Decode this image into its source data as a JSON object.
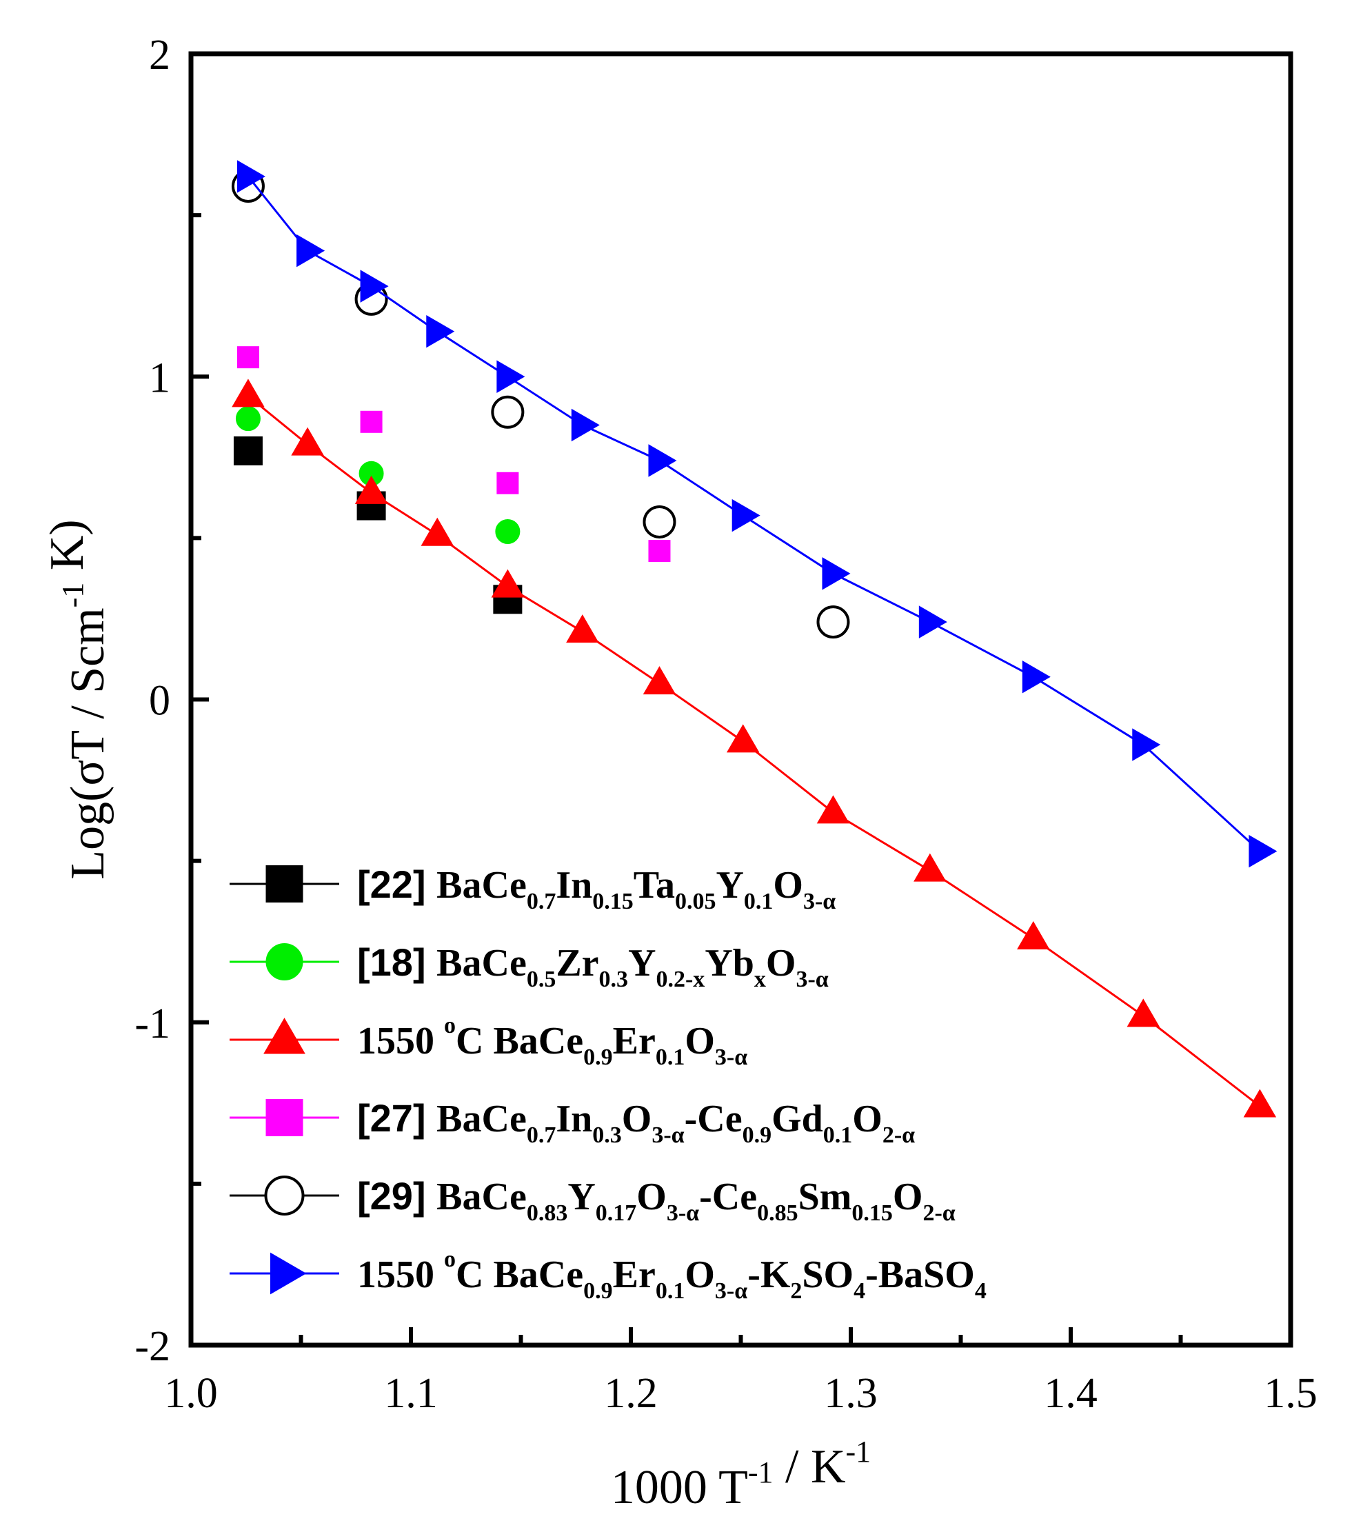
{
  "chart_data": {
    "type": "scatter",
    "title": "",
    "xlabel": "1000 T^-1 / K^-1",
    "ylabel": "Log(σT / Scm^-1 K)",
    "xlim": [
      1.0,
      1.5
    ],
    "ylim": [
      -2,
      2
    ],
    "x_ticks": [
      "1.0",
      "1.1",
      "1.2",
      "1.3",
      "1.4",
      "1.5"
    ],
    "y_ticks": [
      "-2",
      "-1",
      "0",
      "1",
      "2"
    ],
    "x_tick_values": [
      1.0,
      1.1,
      1.2,
      1.3,
      1.4,
      1.5
    ],
    "y_tick_values": [
      -2,
      -1,
      0,
      1,
      2
    ],
    "x_minor_tick_values": [
      1.05,
      1.15,
      1.25,
      1.35,
      1.45
    ],
    "y_minor_tick_values": [
      -1.5,
      -0.5,
      0.5,
      1.5
    ],
    "legend_position": "bottom-left",
    "series": [
      {
        "name": "[22] BaCe0.7In0.15Ta0.05Y0.1O3-α",
        "legend_parts": [
          {
            "t": "[22] ",
            "s": "ref"
          },
          {
            "t": "BaCe",
            "s": "n"
          },
          {
            "t": "0.7",
            "s": "sub"
          },
          {
            "t": "In",
            "s": "n"
          },
          {
            "t": "0.15",
            "s": "sub"
          },
          {
            "t": "Ta",
            "s": "n"
          },
          {
            "t": "0.05",
            "s": "sub"
          },
          {
            "t": "Y",
            "s": "n"
          },
          {
            "t": "0.1",
            "s": "sub"
          },
          {
            "t": "O",
            "s": "n"
          },
          {
            "t": "3-α",
            "s": "sub"
          }
        ],
        "marker": "square",
        "filled": true,
        "color": "#000000",
        "line": false,
        "x": [
          1.026,
          1.082,
          1.144
        ],
        "y": [
          0.77,
          0.6,
          0.31
        ]
      },
      {
        "name": "[18] BaCe0.5Zr0.3Y0.2-xYbxO3-α",
        "legend_parts": [
          {
            "t": "[18] ",
            "s": "ref"
          },
          {
            "t": "BaCe",
            "s": "n"
          },
          {
            "t": "0.5",
            "s": "sub"
          },
          {
            "t": "Zr",
            "s": "n"
          },
          {
            "t": "0.3",
            "s": "sub"
          },
          {
            "t": "Y",
            "s": "n"
          },
          {
            "t": "0.2-x",
            "s": "sub"
          },
          {
            "t": "Yb",
            "s": "n"
          },
          {
            "t": "x",
            "s": "sub"
          },
          {
            "t": "O",
            "s": "n"
          },
          {
            "t": "3-α",
            "s": "sub"
          }
        ],
        "marker": "circle",
        "filled": true,
        "color": "#00ee00",
        "line": false,
        "x": [
          1.026,
          1.082,
          1.144
        ],
        "y": [
          0.87,
          0.7,
          0.52
        ]
      },
      {
        "name": "1550 oC BaCe0.9Er0.1O3-α",
        "legend_parts": [
          {
            "t": "1550 ",
            "s": "n"
          },
          {
            "t": "o",
            "s": "sup"
          },
          {
            "t": "C BaCe",
            "s": "n"
          },
          {
            "t": "0.9",
            "s": "sub"
          },
          {
            "t": "Er",
            "s": "n"
          },
          {
            "t": "0.1",
            "s": "sub"
          },
          {
            "t": "O",
            "s": "n"
          },
          {
            "t": "3-α",
            "s": "sub"
          }
        ],
        "marker": "triangle-up",
        "filled": true,
        "color": "#ff0000",
        "line": true,
        "x": [
          1.026,
          1.053,
          1.082,
          1.112,
          1.144,
          1.178,
          1.213,
          1.251,
          1.292,
          1.336,
          1.383,
          1.433,
          1.486
        ],
        "y": [
          0.94,
          0.79,
          0.64,
          0.51,
          0.35,
          0.21,
          0.05,
          -0.13,
          -0.35,
          -0.53,
          -0.74,
          -0.98,
          -1.26
        ]
      },
      {
        "name": "[27] BaCe0.7In0.3O3-α-Ce0.9Gd0.1O2-α",
        "legend_parts": [
          {
            "t": "[27] ",
            "s": "ref"
          },
          {
            "t": "BaCe",
            "s": "n"
          },
          {
            "t": "0.7",
            "s": "sub"
          },
          {
            "t": "In",
            "s": "n"
          },
          {
            "t": "0.3",
            "s": "sub"
          },
          {
            "t": "O",
            "s": "n"
          },
          {
            "t": "3-α",
            "s": "sub"
          },
          {
            "t": "-Ce",
            "s": "n"
          },
          {
            "t": "0.9",
            "s": "sub"
          },
          {
            "t": "Gd",
            "s": "n"
          },
          {
            "t": "0.1",
            "s": "sub"
          },
          {
            "t": "O",
            "s": "n"
          },
          {
            "t": "2-α",
            "s": "sub"
          }
        ],
        "marker": "square",
        "filled": true,
        "color": "#ff00ff",
        "line": false,
        "small": true,
        "x": [
          1.026,
          1.082,
          1.144,
          1.213
        ],
        "y": [
          1.06,
          0.86,
          0.67,
          0.46
        ]
      },
      {
        "name": "[29] BaCe0.83Y0.17O3-α-Ce0.85Sm0.15O2-α",
        "legend_parts": [
          {
            "t": "[29] ",
            "s": "ref"
          },
          {
            "t": "BaCe",
            "s": "n"
          },
          {
            "t": "0.83",
            "s": "sub"
          },
          {
            "t": "Y",
            "s": "n"
          },
          {
            "t": "0.17",
            "s": "sub"
          },
          {
            "t": "O",
            "s": "n"
          },
          {
            "t": "3-α",
            "s": "sub"
          },
          {
            "t": "-Ce",
            "s": "n"
          },
          {
            "t": "0.85",
            "s": "sub"
          },
          {
            "t": "Sm",
            "s": "n"
          },
          {
            "t": "0.15",
            "s": "sub"
          },
          {
            "t": "O",
            "s": "n"
          },
          {
            "t": "2-α",
            "s": "sub"
          }
        ],
        "marker": "circle",
        "filled": false,
        "color": "#000000",
        "line": false,
        "x": [
          1.026,
          1.082,
          1.144,
          1.213,
          1.292
        ],
        "y": [
          1.59,
          1.24,
          0.89,
          0.55,
          0.24
        ]
      },
      {
        "name": "1550 oC BaCe0.9Er0.1O3-α-K2SO4-BaSO4",
        "legend_parts": [
          {
            "t": "1550 ",
            "s": "n"
          },
          {
            "t": "o",
            "s": "sup"
          },
          {
            "t": "C BaCe",
            "s": "n"
          },
          {
            "t": "0.9",
            "s": "sub"
          },
          {
            "t": "Er",
            "s": "n"
          },
          {
            "t": "0.1",
            "s": "sub"
          },
          {
            "t": "O",
            "s": "n"
          },
          {
            "t": "3-α",
            "s": "sub"
          },
          {
            "t": "-K",
            "s": "n"
          },
          {
            "t": "2",
            "s": "sub"
          },
          {
            "t": "SO",
            "s": "n"
          },
          {
            "t": "4",
            "s": "sub"
          },
          {
            "t": "-BaSO",
            "s": "n"
          },
          {
            "t": "4",
            "s": "sub"
          }
        ],
        "marker": "triangle-right",
        "filled": true,
        "color": "#0000ff",
        "line": true,
        "x": [
          1.026,
          1.053,
          1.082,
          1.112,
          1.144,
          1.178,
          1.213,
          1.251,
          1.292,
          1.336,
          1.383,
          1.433,
          1.486
        ],
        "y": [
          1.62,
          1.39,
          1.28,
          1.14,
          1.0,
          0.85,
          0.74,
          0.57,
          0.39,
          0.24,
          0.07,
          -0.14,
          -0.47
        ]
      }
    ]
  }
}
